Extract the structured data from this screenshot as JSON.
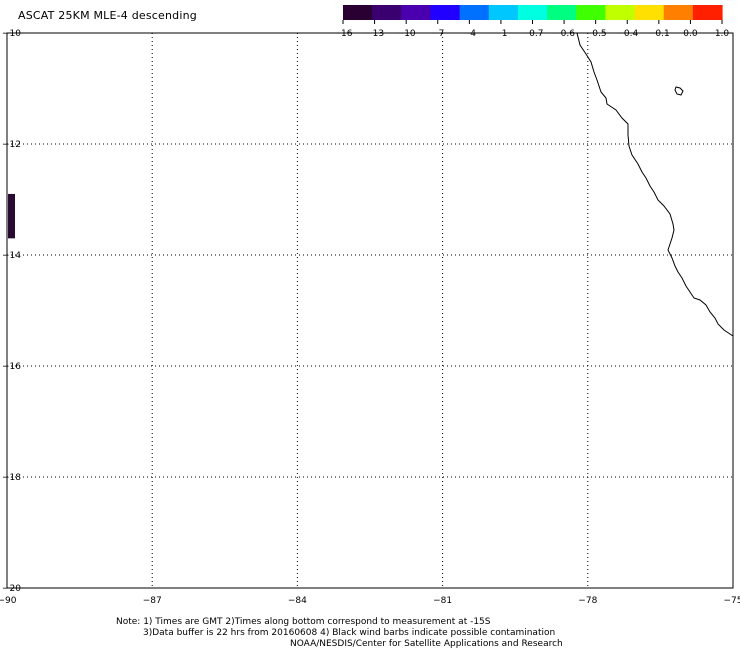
{
  "title": "ASCAT 25KM MLE-4 descending",
  "colorbar": {
    "labels": [
      "-16",
      "-13",
      "-10",
      "-7",
      "-4",
      "-1",
      "-0.7",
      "-0.6",
      "-0.5",
      "-0.4",
      "-0.1",
      "0.0",
      "1.0"
    ],
    "colors": [
      "#2a0033",
      "#3a0070",
      "#4b00b0",
      "#2200ff",
      "#0070ff",
      "#00c8ff",
      "#00ffe0",
      "#00ff80",
      "#40ff00",
      "#c0ff00",
      "#ffe000",
      "#ff8000",
      "#ff2000"
    ]
  },
  "map": {
    "lon_labels": [
      "-90",
      "-87",
      "-84",
      "-81",
      "-78",
      "-75"
    ],
    "lat_labels": [
      "-10",
      "-12",
      "-14",
      "-16",
      "-18",
      "-20"
    ],
    "lon_range": [
      -90,
      -75
    ],
    "lat_range": [
      -20,
      -10
    ],
    "gridlines": "dotted",
    "swath_lat_range": [
      -13.7,
      -12.9
    ],
    "swath_color": "#2a0a33"
  },
  "notes": {
    "line1": "Note: 1) Times are GMT 2)Times along bottom correspond to measurement at -15S",
    "line2": "3)Data buffer is 22 hrs from 20160608 4) Black wind barbs indicate possible contamination",
    "line3": "NOAA/NESDIS/Center for Satellite Applications and Research"
  }
}
